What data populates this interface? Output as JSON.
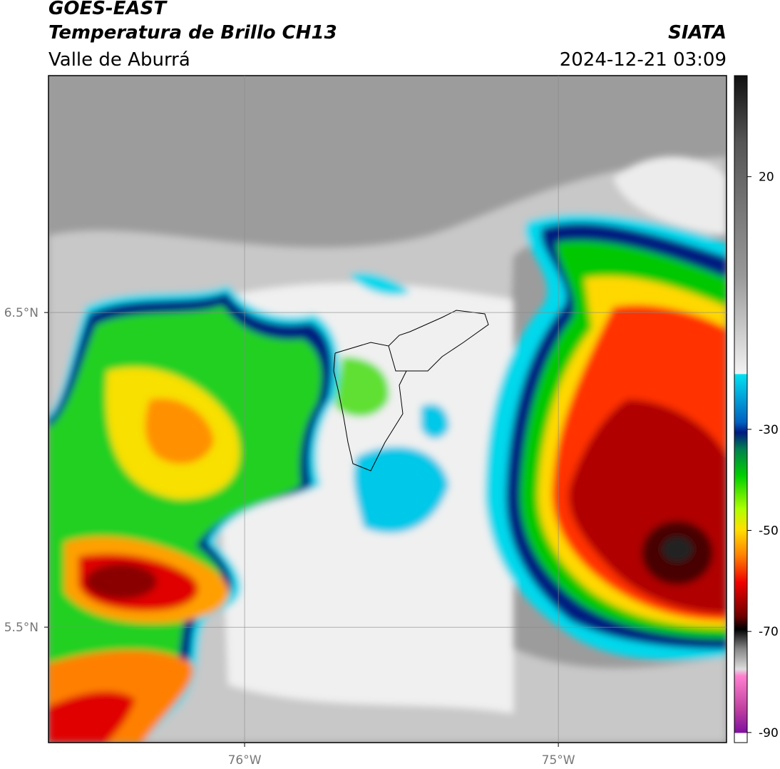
{
  "header": {
    "title": "GOES-EAST",
    "subtitle": "Temperatura de Brillo CH13",
    "region": "Valle de Aburrá",
    "source": "SIATA",
    "timestamp": "2024-12-21 03:09"
  },
  "map": {
    "xlim": [
      -76.625,
      -74.464
    ],
    "ylim": [
      5.133,
      7.253
    ],
    "xticks": [
      {
        "value": -76,
        "label": "76°W"
      },
      {
        "value": -75,
        "label": "75°W"
      }
    ],
    "yticks": [
      {
        "value": 6.5,
        "label": "6.5°N"
      },
      {
        "value": 5.5,
        "label": "5.5°N"
      }
    ],
    "grid": true
  },
  "colorbar": {
    "lim": [
      -92,
      40
    ],
    "ticks": [
      20,
      -30,
      -50,
      -70,
      -90
    ]
  }
}
